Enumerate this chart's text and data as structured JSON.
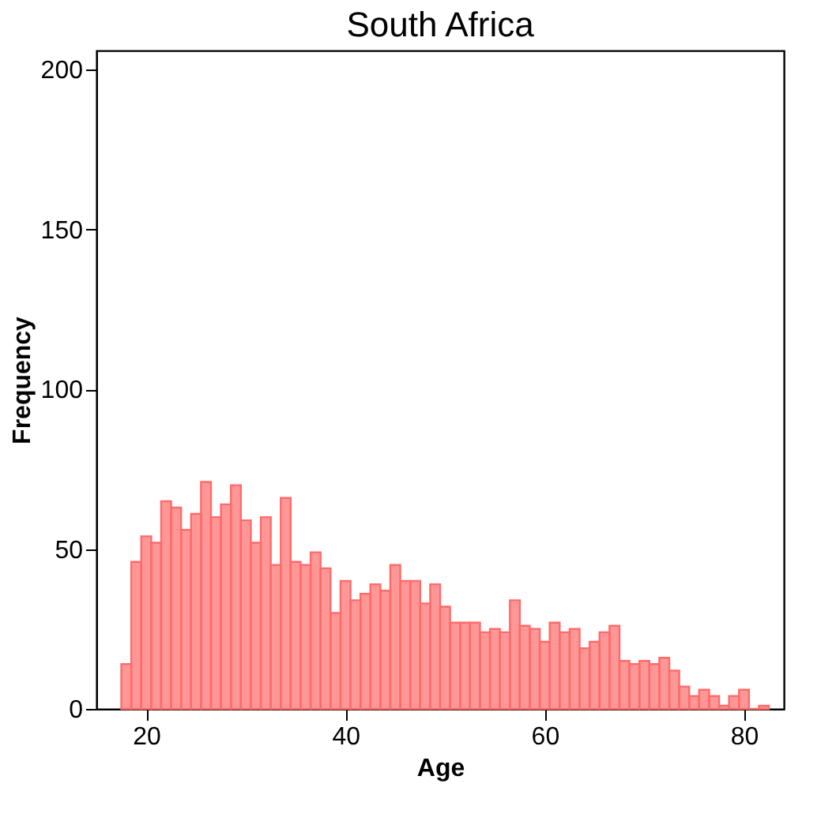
{
  "chart_data": {
    "type": "histogram",
    "title": "South Africa",
    "xlabel": "Age",
    "ylabel": "Frequency",
    "bins": [
      17.5,
      18.5,
      19.5,
      20.5,
      21.5,
      22.5,
      23.5,
      24.5,
      25.5,
      26.5,
      27.5,
      28.5,
      29.5,
      30.5,
      31.5,
      32.5,
      33.5,
      34.5,
      35.5,
      36.5,
      37.5,
      38.5,
      39.5,
      40.5,
      41.5,
      42.5,
      43.5,
      44.5,
      45.5,
      46.5,
      47.5,
      48.5,
      49.5,
      50.5,
      51.5,
      52.5,
      53.5,
      54.5,
      55.5,
      56.5,
      57.5,
      58.5,
      59.5,
      60.5,
      61.5,
      62.5,
      63.5,
      64.5,
      65.5,
      66.5,
      67.5,
      68.5,
      69.5,
      70.5,
      71.5,
      72.5,
      73.5,
      74.5,
      75.5,
      76.5,
      77.5,
      78.5,
      79.5,
      80.5,
      81.5,
      82.5
    ],
    "values": [
      14,
      46,
      54,
      52,
      65,
      63,
      56,
      61,
      71,
      60,
      64,
      70,
      59,
      52,
      60,
      45,
      66,
      46,
      45,
      49,
      44,
      30,
      40,
      34,
      36,
      39,
      37,
      45,
      40,
      40,
      33,
      39,
      32,
      27,
      27,
      27,
      24,
      25,
      24,
      34,
      26,
      25,
      21,
      27,
      24,
      25,
      19,
      21,
      24,
      26,
      15,
      14,
      15,
      14,
      16,
      12,
      7,
      4,
      6,
      4,
      1,
      4,
      6,
      0,
      1
    ],
    "color": "#ff6b6b",
    "xlim": [
      15,
      84
    ],
    "xticks": [
      20,
      40,
      60,
      80
    ],
    "ylim": [
      0,
      206
    ],
    "yticks": [
      0,
      50,
      100,
      150,
      200
    ],
    "grid": false
  }
}
